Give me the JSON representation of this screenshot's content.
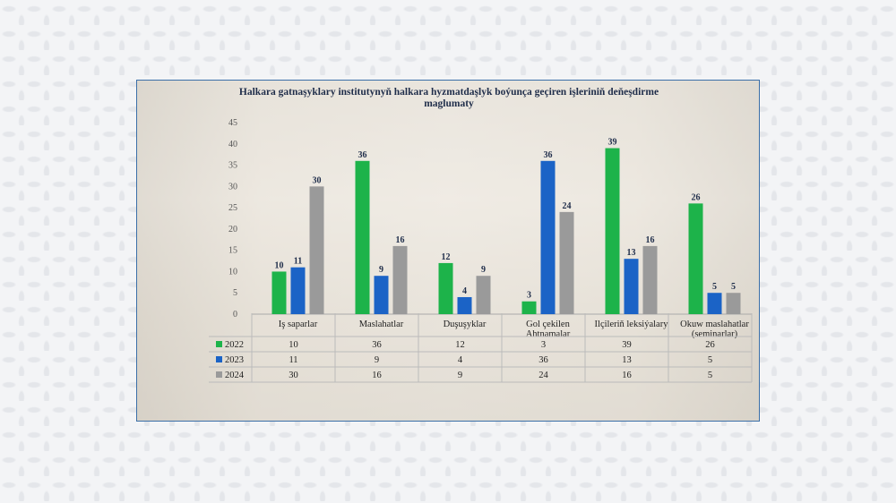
{
  "chart_data": {
    "type": "bar",
    "title": "Halkara gatnaşyklary institutynyň halkara hyzmatdaşlyk boýunça geçiren işleriniň deňeşdirme maglumaty",
    "title_lines": [
      "Halkara gatnaşyklary institutynyň halkara hyzmatdaşlyk boýunça geçiren işleriniň deňeşdirme",
      "maglumaty"
    ],
    "categories": [
      "Iş saparlar",
      "Maslahatlar",
      "Duşuşyklar",
      "Gol çekilen Ahtnamalar",
      "Ilçileriň leksiýalary",
      "Okuw maslahatlar (seminarlar)"
    ],
    "category_lines": [
      [
        "Iş saparlar"
      ],
      [
        "Maslahatlar"
      ],
      [
        "Duşuşyklar"
      ],
      [
        "Gol çekilen",
        "Ahtnamalar"
      ],
      [
        "Ilçileriň leksiýalary"
      ],
      [
        "Okuw maslahatlar",
        "(seminarlar)"
      ]
    ],
    "series": [
      {
        "name": "2022",
        "color": "#1db34a",
        "values": [
          10,
          36,
          12,
          3,
          39,
          26
        ]
      },
      {
        "name": "2023",
        "color": "#1b63c6",
        "values": [
          11,
          9,
          4,
          36,
          13,
          5
        ]
      },
      {
        "name": "2024",
        "color": "#9a9a9a",
        "values": [
          30,
          16,
          9,
          24,
          16,
          5
        ]
      }
    ],
    "ylim": [
      0,
      45
    ],
    "yticks": [
      0,
      5,
      10,
      15,
      20,
      25,
      30,
      35,
      40,
      45
    ],
    "xlabel": "",
    "ylabel": "",
    "grid": false,
    "data_table": true,
    "legend": "data-table"
  }
}
